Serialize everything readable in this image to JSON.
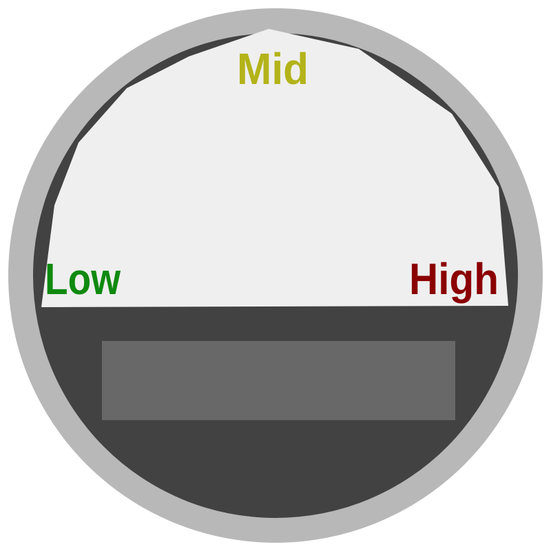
{
  "gauge": {
    "labels": {
      "low": "Low",
      "mid": "Mid",
      "high": "High"
    },
    "readout": "",
    "colors": {
      "bezel": "#b8b8b8",
      "body": "#424242",
      "face": "#efefef",
      "readout_panel": "#686868",
      "low": "#0f8a0f",
      "mid": "#b3b31a",
      "high": "#8b0000"
    }
  }
}
